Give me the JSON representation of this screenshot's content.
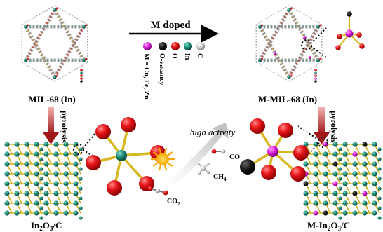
{
  "labels": {
    "mil68": "MIL-68 (In)",
    "m_mil68": "M-MIL-68 (In)",
    "m_doped": "M doped",
    "pyrolysis_left": "pyrolysis",
    "pyrolysis_right": "pyrolysis",
    "high_activity": "high activity",
    "co": "CO",
    "ch4": "CH",
    "ch4_sub": "4",
    "co2": "CO",
    "co2_sub": "2",
    "in2o3c_pre": "In",
    "in2o3c_sub1": "2",
    "in2o3c_mid": "O",
    "in2o3c_sub2": "3",
    "in2o3c_post": "/C",
    "m_in2o3c_pre": "M-In",
    "m_in2o3c_sub1": "2",
    "m_in2o3c_mid": "O",
    "m_in2o3c_sub2": "3",
    "m_in2o3c_post": "/C"
  },
  "legend": {
    "items": [
      {
        "label": "M = Cu, Fe, Zn",
        "color": "#e020e0"
      },
      {
        "label": "O-vacancy",
        "color": "#111111"
      },
      {
        "label": "O",
        "color": "#e8161a"
      },
      {
        "label": "In",
        "color": "#1f8c7a"
      },
      {
        "label": "C",
        "color": "#c8c8c8"
      }
    ]
  },
  "colors": {
    "metal_dopant": "#e020e0",
    "oxygen": "#e8161a",
    "indium": "#1f8c7a",
    "vacancy": "#111111",
    "carbon": "#c8c8c8",
    "bond": "#d8b820",
    "pyrolysis_arrow": "#a01818"
  }
}
